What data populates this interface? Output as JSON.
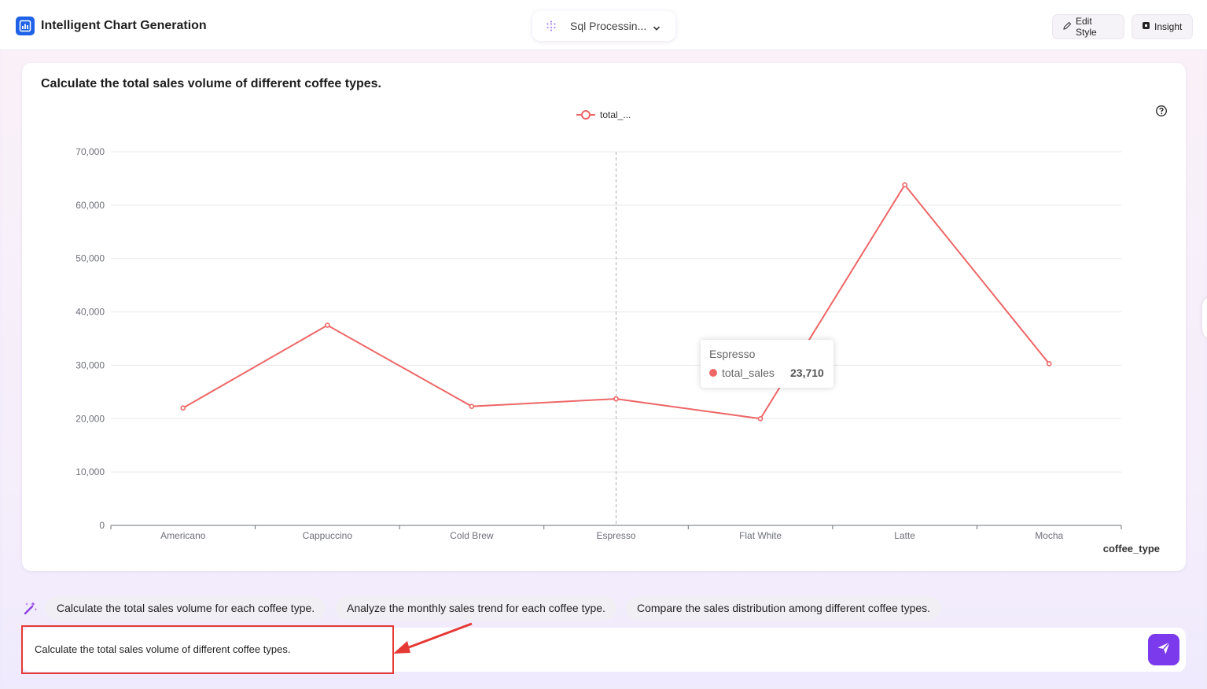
{
  "header": {
    "app_title": "Intelligent Chart Generation",
    "sql_selector": "Sql Processin...",
    "edit_style_label": "Edit Style",
    "insight_label": "Insight"
  },
  "card": {
    "title": "Calculate the total sales volume of different coffee types."
  },
  "chart_data": {
    "type": "line",
    "categories": [
      "Americano",
      "Cappuccino",
      "Cold Brew",
      "Espresso",
      "Flat White",
      "Latte",
      "Mocha"
    ],
    "series": [
      {
        "name": "total_sales",
        "values": [
          22000,
          37500,
          22300,
          23710,
          20000,
          63800,
          30300
        ],
        "color": "#ee6666"
      }
    ],
    "legend_label": "total_...",
    "xlabel": "coffee_type",
    "ylabel": "",
    "ylim": [
      0,
      70000
    ],
    "yticks": [
      "0",
      "10,000",
      "20,000",
      "30,000",
      "40,000",
      "50,000",
      "60,000",
      "70,000"
    ],
    "grid": true,
    "legend_position": "top-center",
    "hover_category_index": 3
  },
  "tooltip": {
    "title": "Espresso",
    "series": "total_sales",
    "value": "23,710"
  },
  "suggestions": [
    "Calculate the total sales volume for each coffee type.",
    "Analyze the monthly sales trend for each coffee type.",
    "Compare the sales distribution among different coffee types."
  ],
  "input": {
    "value": "Calculate the total sales volume of different coffee types."
  },
  "colors": {
    "accent": "#7c3aed",
    "logo": "#1f62e8",
    "series": "#ee6666",
    "annotation": "#e53935"
  }
}
